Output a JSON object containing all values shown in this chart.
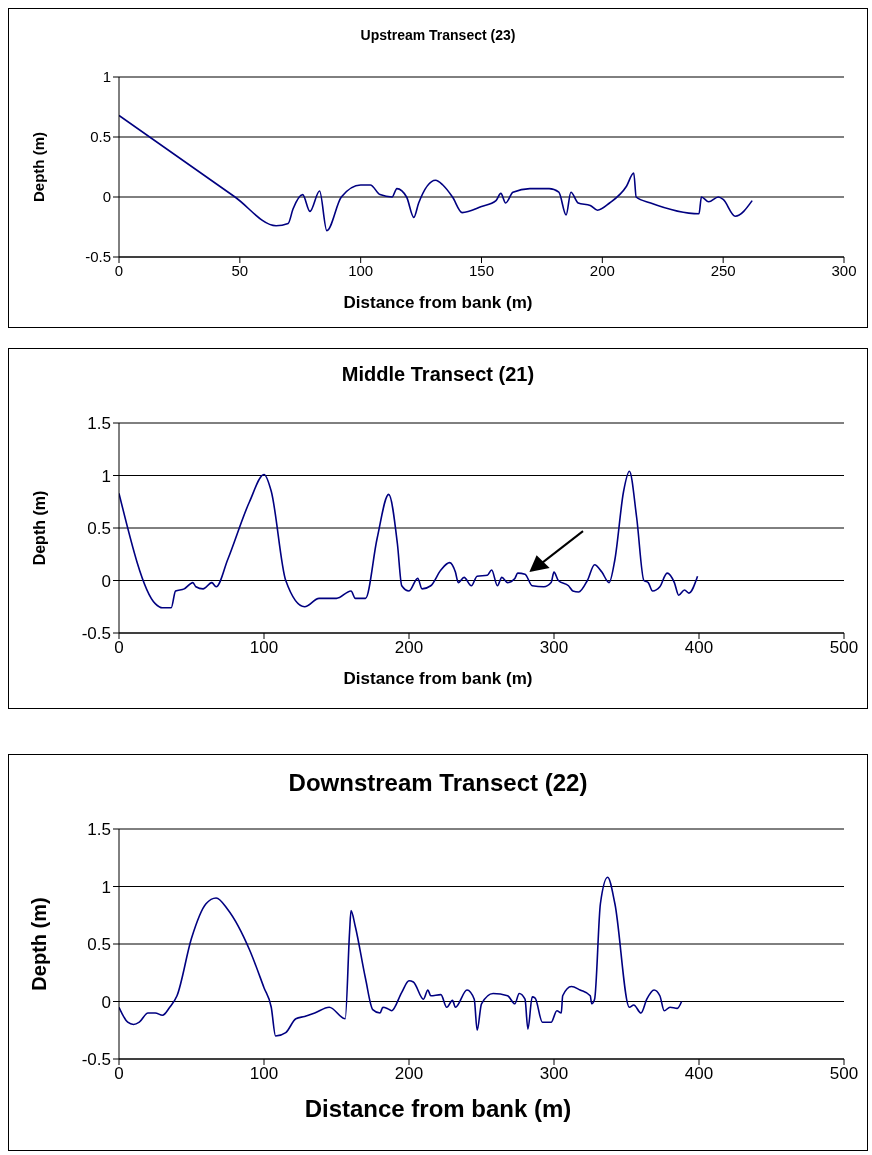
{
  "chart_data": [
    {
      "type": "line",
      "title": "Upstream Transect (23)",
      "xlabel": "Distance from bank (m)",
      "ylabel": "Depth (m)",
      "color": "#000080",
      "xlim": [
        0,
        300
      ],
      "xticks": [
        0,
        50,
        100,
        150,
        200,
        250,
        300
      ],
      "ylim": [
        -0.5,
        1
      ],
      "yticks": [
        -0.5,
        0,
        0.5,
        1
      ],
      "grid": "y",
      "marker": "none",
      "line_style": "solid",
      "x": [
        0,
        48,
        65,
        70,
        72,
        76,
        79,
        83,
        86,
        92,
        100,
        104,
        108,
        113,
        115,
        119,
        122,
        124,
        131,
        134,
        138,
        142,
        150,
        156,
        158,
        160,
        163,
        170,
        178,
        182,
        185,
        187,
        190,
        195,
        198,
        203,
        210,
        213,
        214,
        220,
        240,
        241,
        244,
        248,
        250,
        255,
        262
      ],
      "values": [
        0.68,
        0,
        -0.24,
        -0.22,
        -0.1,
        0.02,
        -0.12,
        0.05,
        -0.28,
        0,
        0.1,
        0.1,
        0.02,
        0,
        0.07,
        0,
        -0.17,
        -0.05,
        0.14,
        0.1,
        0,
        -0.13,
        -0.08,
        -0.03,
        0.03,
        -0.05,
        0.04,
        0.07,
        0.07,
        0.04,
        -0.15,
        0.04,
        -0.05,
        -0.07,
        -0.11,
        -0.05,
        0.09,
        0.2,
        0,
        -0.05,
        -0.14,
        0,
        -0.04,
        0,
        -0.02,
        -0.16,
        -0.03
      ]
    },
    {
      "type": "line",
      "title": "Middle Transect (21)",
      "xlabel": "Distance from bank (m)",
      "ylabel": "Depth (m)",
      "color": "#000080",
      "xlim": [
        0,
        500
      ],
      "xticks": [
        0,
        100,
        200,
        300,
        400,
        500
      ],
      "ylim": [
        -0.5,
        1.5
      ],
      "yticks": [
        -0.5,
        0,
        0.5,
        1,
        1.5
      ],
      "grid": "y",
      "marker": "none",
      "line_style": "solid",
      "x": [
        0,
        25,
        30,
        36,
        39,
        45,
        51,
        53,
        58,
        64,
        67,
        75,
        90,
        100,
        105,
        115,
        128,
        138,
        150,
        160,
        163,
        170,
        178,
        186,
        192,
        195,
        200,
        206,
        209,
        215,
        222,
        228,
        232,
        234,
        238,
        243,
        247,
        254,
        257,
        261,
        264,
        268,
        273,
        275,
        280,
        285,
        293,
        298,
        300,
        303,
        310,
        313,
        317,
        323,
        328,
        333,
        338,
        342,
        348,
        352,
        357,
        362,
        365,
        368,
        373,
        378,
        383,
        386,
        390,
        393,
        399
      ],
      "values": [
        0.83,
        -0.22,
        -0.26,
        -0.26,
        -0.1,
        -0.08,
        -0.02,
        -0.06,
        -0.08,
        -0.02,
        -0.06,
        0.2,
        0.75,
        1.01,
        0.85,
        0,
        -0.25,
        -0.17,
        -0.17,
        -0.1,
        -0.17,
        -0.17,
        0.4,
        0.82,
        0.35,
        -0.05,
        -0.1,
        0.02,
        -0.08,
        -0.05,
        0.1,
        0.17,
        0.08,
        -0.02,
        0.03,
        -0.05,
        0.04,
        0.05,
        0.1,
        -0.05,
        0.03,
        -0.02,
        0.02,
        0.07,
        0.06,
        -0.05,
        -0.06,
        -0.02,
        0.08,
        0,
        -0.05,
        -0.1,
        -0.11,
        0,
        0.15,
        0.08,
        -0.02,
        0.2,
        0.85,
        1.04,
        0.6,
        0,
        -0.02,
        -0.1,
        -0.06,
        0.07,
        -0.02,
        -0.14,
        -0.09,
        -0.12,
        0.04
      ]
    },
    {
      "type": "line",
      "title": "Downstream Transect (22)",
      "xlabel": "Distance from bank (m)",
      "ylabel": "Depth (m)",
      "color": "#000080",
      "xlim": [
        0,
        500
      ],
      "xticks": [
        0,
        100,
        200,
        300,
        400,
        500
      ],
      "ylim": [
        -0.5,
        1.5
      ],
      "yticks": [
        -0.5,
        0,
        0.5,
        1,
        1.5
      ],
      "grid": "y",
      "marker": "none",
      "line_style": "solid",
      "x": [
        0,
        6,
        10,
        14,
        20,
        25,
        30,
        35,
        40,
        50,
        60,
        67,
        75,
        90,
        100,
        105,
        108,
        115,
        122,
        128,
        135,
        145,
        156,
        159,
        160,
        163,
        170,
        175,
        180,
        182,
        185,
        188,
        195,
        200,
        203,
        210,
        213,
        215,
        222,
        226,
        230,
        232,
        240,
        245,
        247,
        250,
        258,
        268,
        273,
        276,
        280,
        282,
        285,
        287,
        292,
        298,
        302,
        305,
        306,
        312,
        318,
        325,
        326,
        328,
        332,
        337,
        342,
        352,
        355,
        360,
        364,
        369,
        373,
        376,
        380,
        385,
        388
      ],
      "values": [
        -0.05,
        -0.18,
        -0.2,
        -0.18,
        -0.1,
        -0.1,
        -0.12,
        -0.05,
        0.05,
        0.55,
        0.85,
        0.9,
        0.8,
        0.45,
        0.12,
        -0.05,
        -0.3,
        -0.27,
        -0.15,
        -0.13,
        -0.1,
        -0.05,
        -0.15,
        0.6,
        0.79,
        0.65,
        0.2,
        -0.07,
        -0.1,
        -0.05,
        -0.06,
        -0.08,
        0.08,
        0.18,
        0.17,
        0.02,
        0.1,
        0.05,
        0.06,
        -0.05,
        0.01,
        -0.05,
        0.1,
        0.02,
        -0.25,
        -0.02,
        0.07,
        0.05,
        -0.02,
        0.07,
        0.02,
        -0.24,
        0.04,
        0.03,
        -0.18,
        -0.18,
        -0.08,
        -0.1,
        0.05,
        0.13,
        0.1,
        0.05,
        -0.02,
        0.02,
        0.85,
        1.08,
        0.85,
        -0.05,
        -0.03,
        -0.1,
        0.02,
        0.1,
        0.05,
        -0.08,
        -0.05,
        -0.06,
        0
      ]
    }
  ]
}
